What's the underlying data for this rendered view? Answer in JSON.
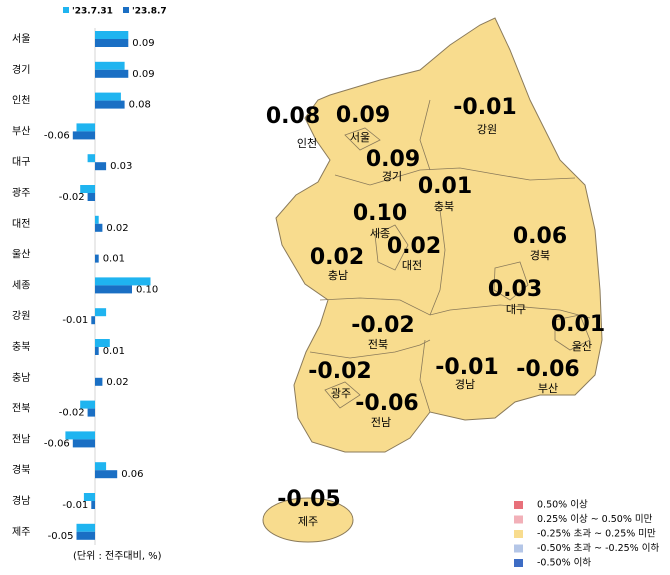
{
  "chart_data": {
    "type": "bar",
    "orientation": "horizontal",
    "categories": [
      "서울",
      "경기",
      "인천",
      "부산",
      "대구",
      "광주",
      "대전",
      "울산",
      "세종",
      "강원",
      "충북",
      "충남",
      "전북",
      "전남",
      "경북",
      "경남",
      "제주"
    ],
    "series": [
      {
        "name": "'23.7.31",
        "color": "#1fb4f0",
        "values": [
          0.09,
          0.08,
          0.07,
          -0.05,
          -0.02,
          -0.04,
          0.01,
          0,
          0.15,
          0.03,
          0.04,
          0,
          -0.04,
          -0.08,
          0.03,
          -0.03,
          -0.05
        ]
      },
      {
        "name": "'23.8.7",
        "color": "#1a6fc4",
        "values": [
          0.09,
          0.09,
          0.08,
          -0.06,
          0.03,
          -0.02,
          0.02,
          0.01,
          0.1,
          -0.01,
          0.01,
          0.02,
          -0.02,
          -0.06,
          0.06,
          -0.01,
          -0.05
        ],
        "value_labels": [
          "0.09",
          "0.09",
          "0.08",
          "-0.06",
          "0.03",
          "-0.02",
          "0.02",
          "0.01",
          "0.10",
          "-0.01",
          "0.01",
          "0.02",
          "-0.02",
          "-0.06",
          "0.06",
          "-0.01",
          "-0.05"
        ]
      }
    ],
    "unit_note": "(단위 : 전주대비, %)",
    "map_legend": [
      {
        "label": "0.50% 이상",
        "color": "#e8707a"
      },
      {
        "label": "0.25% 이상 ~ 0.50% 미만",
        "color": "#f2b0b8"
      },
      {
        "label": "-0.25% 초과 ~ 0.25% 미만",
        "color": "#f8dc8e"
      },
      {
        "label": "-0.50% 초과 ~ -0.25% 이하",
        "color": "#b4c6e7"
      },
      {
        "label": "-0.50% 이하",
        "color": "#3d6cc4"
      }
    ]
  }
}
